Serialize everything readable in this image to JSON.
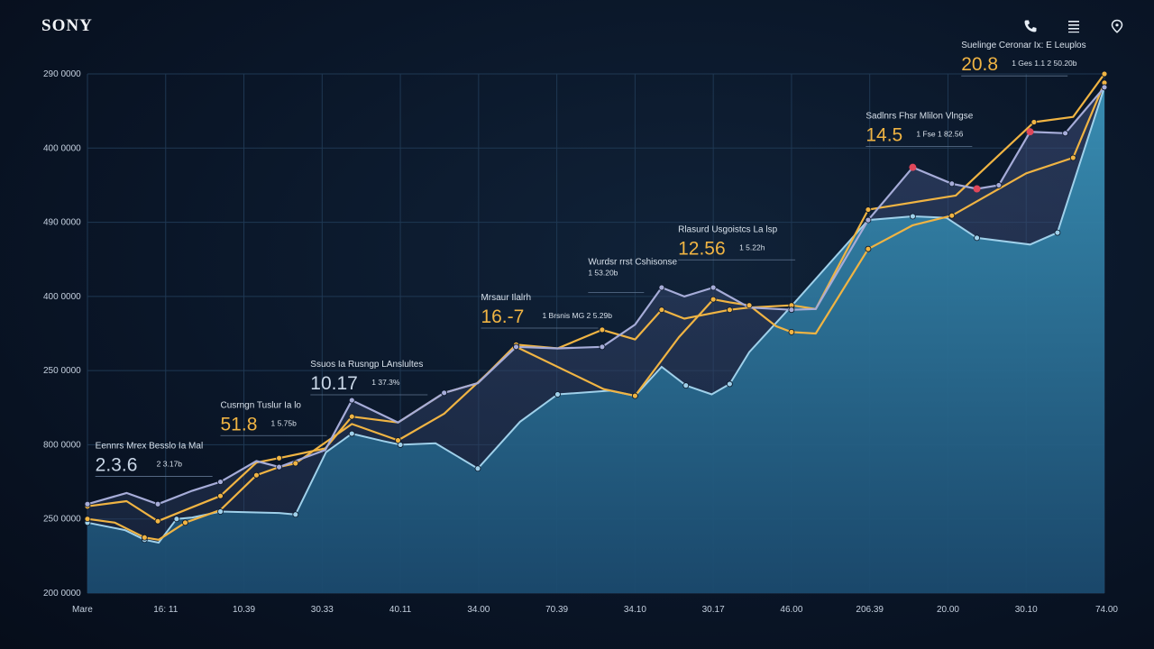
{
  "header": {
    "brand": "SONY",
    "icons": [
      "phone-icon",
      "menu-icon",
      "location-pin-icon"
    ]
  },
  "colors": {
    "area_fill": "#2f7fa6",
    "line_light": "#9fd0ea",
    "line_orange": "#f0b443",
    "line_lavender": "#a6acd8",
    "marker_red": "#e0475a",
    "grid": "#1f3853"
  },
  "chart_data": {
    "type": "area",
    "title": "",
    "xlabel": "",
    "ylabel": "",
    "grid": true,
    "x_tick_labels": [
      "Mare",
      "16: 11",
      "10.39",
      "30.33",
      "40.11",
      "34.00",
      "70.39",
      "34.10",
      "30.17",
      "46.00",
      "206.39",
      "20.00",
      "30.10",
      "74.00"
    ],
    "y_tick_labels": [
      "290 0000",
      "400 0000",
      "490 0000",
      "400 0000",
      "250 0000",
      "800 0000",
      "250 0000",
      "200 0000"
    ],
    "y_units_range": [
      0,
      7
    ],
    "x_range": [
      0,
      13
    ],
    "series": [
      {
        "role": "area",
        "color": "#9fd0ea",
        "points": [
          [
            0,
            0.95
          ],
          [
            0.48,
            0.85
          ],
          [
            0.73,
            0.72
          ],
          [
            0.91,
            0.68
          ],
          [
            1.14,
            1.0
          ],
          [
            1.34,
            1.02
          ],
          [
            1.7,
            1.1
          ],
          [
            2.45,
            1.08
          ],
          [
            2.66,
            1.06
          ],
          [
            3.05,
            1.9
          ],
          [
            3.38,
            2.15
          ],
          [
            3.78,
            2.05
          ],
          [
            4.0,
            2.0
          ],
          [
            4.45,
            2.02
          ],
          [
            4.99,
            1.68
          ],
          [
            5.53,
            2.31
          ],
          [
            6.01,
            2.68
          ],
          [
            6.68,
            2.73
          ],
          [
            7.0,
            2.66
          ],
          [
            7.34,
            3.05
          ],
          [
            7.65,
            2.8
          ],
          [
            7.98,
            2.68
          ],
          [
            8.21,
            2.82
          ],
          [
            8.46,
            3.25
          ],
          [
            9.0,
            3.87
          ],
          [
            9.98,
            5.03
          ],
          [
            10.55,
            5.08
          ],
          [
            10.98,
            5.06
          ],
          [
            11.37,
            4.79
          ],
          [
            12.05,
            4.7
          ],
          [
            12.4,
            4.86
          ],
          [
            13.0,
            6.82
          ]
        ]
      },
      {
        "role": "line",
        "color": "#f0b443",
        "points": [
          [
            0,
            1.0
          ],
          [
            0.35,
            0.95
          ],
          [
            0.73,
            0.75
          ],
          [
            0.91,
            0.72
          ],
          [
            1.25,
            0.95
          ],
          [
            1.7,
            1.12
          ],
          [
            2.16,
            1.59
          ],
          [
            2.45,
            1.7
          ],
          [
            2.66,
            1.75
          ],
          [
            3.38,
            2.28
          ],
          [
            3.97,
            2.06
          ],
          [
            4.56,
            2.42
          ],
          [
            5.48,
            3.32
          ],
          [
            6.6,
            2.75
          ],
          [
            7.0,
            2.66
          ],
          [
            7.56,
            3.45
          ],
          [
            8.0,
            3.96
          ],
          [
            8.21,
            3.92
          ],
          [
            8.46,
            3.88
          ],
          [
            8.8,
            3.6
          ],
          [
            9.0,
            3.52
          ],
          [
            9.31,
            3.5
          ],
          [
            9.98,
            4.64
          ],
          [
            10.55,
            4.96
          ],
          [
            11.05,
            5.09
          ],
          [
            12.0,
            5.66
          ],
          [
            12.6,
            5.87
          ],
          [
            13.0,
            6.88
          ]
        ]
      },
      {
        "role": "line",
        "color": "#f0b443",
        "points": [
          [
            0,
            1.17
          ],
          [
            0.5,
            1.24
          ],
          [
            0.9,
            0.97
          ],
          [
            1.25,
            1.12
          ],
          [
            1.7,
            1.31
          ],
          [
            2.16,
            1.76
          ],
          [
            2.45,
            1.82
          ],
          [
            3.04,
            1.95
          ],
          [
            3.38,
            2.38
          ],
          [
            3.97,
            2.3
          ],
          [
            4.56,
            2.7
          ],
          [
            4.99,
            2.83
          ],
          [
            5.48,
            3.35
          ],
          [
            6.01,
            3.3
          ],
          [
            6.58,
            3.55
          ],
          [
            7.0,
            3.42
          ],
          [
            7.34,
            3.82
          ],
          [
            7.63,
            3.7
          ],
          [
            8.21,
            3.82
          ],
          [
            8.46,
            3.85
          ],
          [
            9.0,
            3.88
          ],
          [
            9.31,
            3.83
          ],
          [
            9.98,
            5.17
          ],
          [
            11.1,
            5.36
          ],
          [
            12.1,
            6.35
          ],
          [
            12.6,
            6.42
          ],
          [
            13.0,
            7.0
          ]
        ]
      },
      {
        "role": "line",
        "color": "#a6acd8",
        "points": [
          [
            0,
            1.2
          ],
          [
            0.5,
            1.35
          ],
          [
            0.9,
            1.2
          ],
          [
            1.34,
            1.38
          ],
          [
            1.7,
            1.5
          ],
          [
            2.16,
            1.78
          ],
          [
            2.45,
            1.7
          ],
          [
            3.04,
            1.93
          ],
          [
            3.38,
            2.6
          ],
          [
            3.97,
            2.3
          ],
          [
            4.56,
            2.7
          ],
          [
            4.99,
            2.83
          ],
          [
            5.48,
            3.32
          ],
          [
            6.01,
            3.3
          ],
          [
            6.58,
            3.32
          ],
          [
            7.0,
            3.62
          ],
          [
            7.34,
            4.12
          ],
          [
            7.63,
            4.0
          ],
          [
            8.0,
            4.12
          ],
          [
            8.46,
            3.85
          ],
          [
            9.0,
            3.82
          ],
          [
            9.31,
            3.83
          ],
          [
            9.98,
            5.03
          ],
          [
            10.55,
            5.74
          ],
          [
            11.05,
            5.52
          ],
          [
            11.37,
            5.45
          ],
          [
            11.65,
            5.5
          ],
          [
            12.05,
            6.22
          ],
          [
            12.5,
            6.2
          ],
          [
            13.0,
            6.82
          ]
        ]
      }
    ],
    "red_markers": [
      [
        10.55,
        5.74
      ],
      [
        11.37,
        5.45
      ],
      [
        12.05,
        6.22
      ]
    ],
    "annotations": [
      {
        "title": "Eennrs Mrex Besslo Ia Mal",
        "value": "2.3.6",
        "sub": "2 3.17b",
        "color": "#c9d6e6",
        "x": 0.1,
        "y": 1.95
      },
      {
        "title": "Cusrngn Tuslur Ia lo",
        "value": "51.8",
        "sub": "1 5.75b",
        "color": "#f0b443",
        "x": 1.7,
        "y": 2.5
      },
      {
        "title": "Ssuos Ia Rusngp LAnslultes",
        "value": "10.17",
        "sub": "1 37.3%",
        "color": "#c9d6e6",
        "x": 2.85,
        "y": 3.05
      },
      {
        "title": "Mrsaur Ilalrh",
        "value": "16.-7",
        "sub": "1 Brsnis MG 2 5.29b",
        "color": "#f0b443",
        "x": 5.03,
        "y": 3.95
      },
      {
        "title": "Wurdsr rrst Cshisonse",
        "value": "",
        "sub": "1 53.20b",
        "color": "#c9d6e6",
        "x": 6.4,
        "y": 4.43
      },
      {
        "title": "Rlasurd Usgoistcs La lsp",
        "value": "12.56",
        "sub": "1 5.22h",
        "color": "#f0b443",
        "x": 7.55,
        "y": 4.87
      },
      {
        "title": "Sadlnrs Fhsr Mlilon Vlngse",
        "value": "14.5",
        "sub": "1 Fse 1 82.56",
        "color": "#f0b443",
        "x": 9.95,
        "y": 6.4
      },
      {
        "title": "Suelinge Ceronar Ix: E Leuplos",
        "value": "20.8",
        "sub": "1 Ges 1.1 2 50.20b",
        "color": "#f0b443",
        "x": 11.17,
        "y": 7.35
      }
    ]
  }
}
